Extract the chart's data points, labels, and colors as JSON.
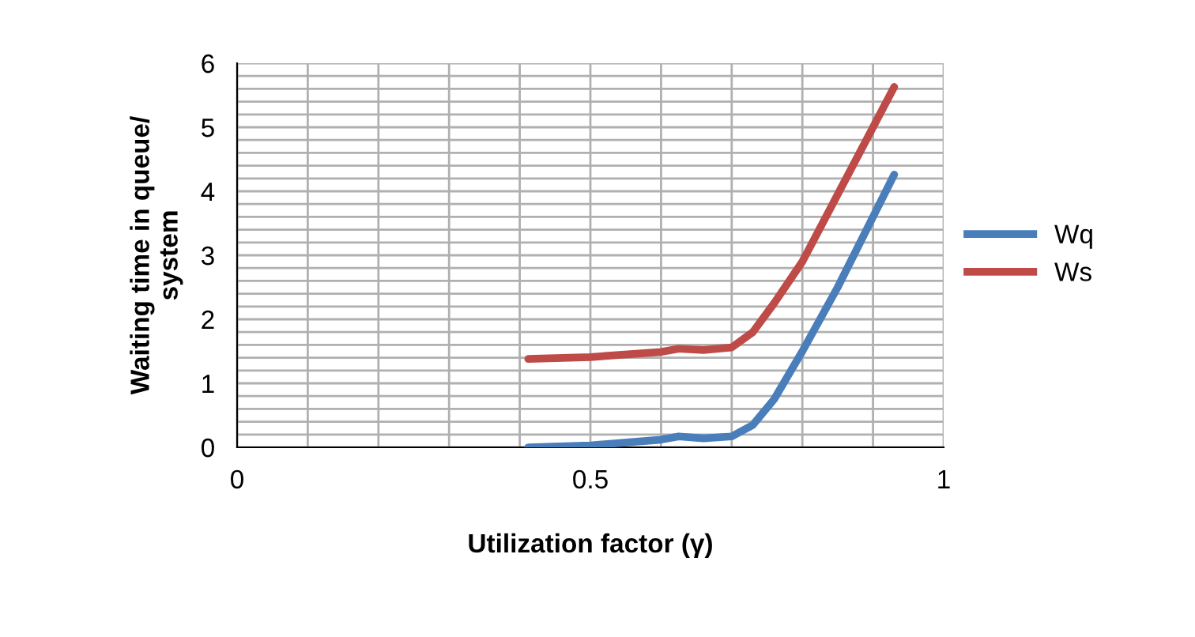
{
  "chart_data": {
    "type": "line",
    "xlabel": "Utilization factor (γ)",
    "ylabel": "Waiting time in queue/\nsystem",
    "xlim": [
      0,
      1
    ],
    "ylim": [
      0,
      6
    ],
    "xticks": [
      0,
      {
        "value": 0.1,
        "label": null
      },
      {
        "value": 0.2,
        "label": null
      },
      {
        "value": 0.3,
        "label": null
      },
      {
        "value": 0.4,
        "label": null
      },
      0.5,
      {
        "value": 0.6,
        "label": null
      },
      {
        "value": 0.7,
        "label": null
      },
      {
        "value": 0.8,
        "label": null
      },
      {
        "value": 0.9,
        "label": null
      },
      1
    ],
    "yticks": [
      0,
      {
        "value": 0.2,
        "label": null
      },
      {
        "value": 0.4,
        "label": null
      },
      {
        "value": 0.6,
        "label": null
      },
      {
        "value": 0.8,
        "label": null
      },
      1,
      {
        "value": 1.2,
        "label": null
      },
      {
        "value": 1.4,
        "label": null
      },
      {
        "value": 1.6,
        "label": null
      },
      {
        "value": 1.8,
        "label": null
      },
      2,
      {
        "value": 2.2,
        "label": null
      },
      {
        "value": 2.4,
        "label": null
      },
      {
        "value": 2.6,
        "label": null
      },
      {
        "value": 2.8,
        "label": null
      },
      3,
      {
        "value": 3.2,
        "label": null
      },
      {
        "value": 3.4,
        "label": null
      },
      {
        "value": 3.6,
        "label": null
      },
      {
        "value": 3.8,
        "label": null
      },
      4,
      {
        "value": 4.2,
        "label": null
      },
      {
        "value": 4.4,
        "label": null
      },
      {
        "value": 4.6,
        "label": null
      },
      {
        "value": 4.8,
        "label": null
      },
      5,
      {
        "value": 5.2,
        "label": null
      },
      {
        "value": 5.4,
        "label": null
      },
      {
        "value": 5.6,
        "label": null
      },
      {
        "value": 5.8,
        "label": null
      },
      6
    ],
    "grid": true,
    "legend": "right",
    "marker": "none",
    "line_style": "solid",
    "series": [
      {
        "name": "Wq",
        "color": "#4a7ebb",
        "x": [
          0.412,
          0.5,
          0.6,
          0.625,
          0.66,
          0.7,
          0.73,
          0.76,
          0.8,
          0.85,
          0.9,
          0.93
        ],
        "values": [
          0,
          0.03,
          0.12,
          0.17,
          0.14,
          0.17,
          0.35,
          0.75,
          1.5,
          2.5,
          3.6,
          4.26
        ]
      },
      {
        "name": "Ws",
        "color": "#be4b48",
        "x": [
          0.412,
          0.5,
          0.6,
          0.625,
          0.66,
          0.7,
          0.73,
          0.76,
          0.8,
          0.85,
          0.9,
          0.93
        ],
        "values": [
          1.38,
          1.41,
          1.49,
          1.54,
          1.52,
          1.56,
          1.8,
          2.25,
          2.9,
          3.95,
          5.0,
          5.63
        ]
      }
    ]
  }
}
